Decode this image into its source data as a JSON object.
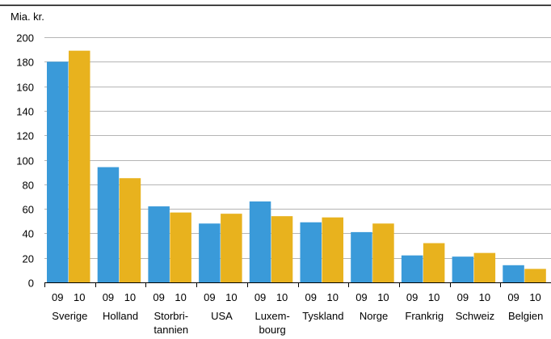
{
  "chart_data": {
    "type": "bar",
    "unit_label": "Mia. kr.",
    "ylim": [
      0,
      200
    ],
    "yticks": [
      0,
      20,
      40,
      60,
      80,
      100,
      120,
      140,
      160,
      180,
      200
    ],
    "grid": true,
    "year_labels": [
      "09",
      "10"
    ],
    "categories": [
      {
        "lines": [
          "Sverige"
        ]
      },
      {
        "lines": [
          "Holland"
        ]
      },
      {
        "lines": [
          "Storbri-",
          "tannien"
        ]
      },
      {
        "lines": [
          "USA"
        ]
      },
      {
        "lines": [
          "Luxem-",
          "bourg"
        ]
      },
      {
        "lines": [
          "Tyskland"
        ]
      },
      {
        "lines": [
          "Norge"
        ]
      },
      {
        "lines": [
          "Frankrig"
        ]
      },
      {
        "lines": [
          "Schweiz"
        ]
      },
      {
        "lines": [
          "Belgien"
        ]
      }
    ],
    "series": [
      {
        "values": [
          180,
          94,
          62,
          48,
          66,
          49,
          41,
          22,
          21,
          14
        ],
        "color": "#3a9ad9"
      },
      {
        "values": [
          189,
          85,
          57,
          56,
          54,
          53,
          48,
          32,
          24,
          11
        ],
        "color": "#e8b21e"
      }
    ]
  }
}
